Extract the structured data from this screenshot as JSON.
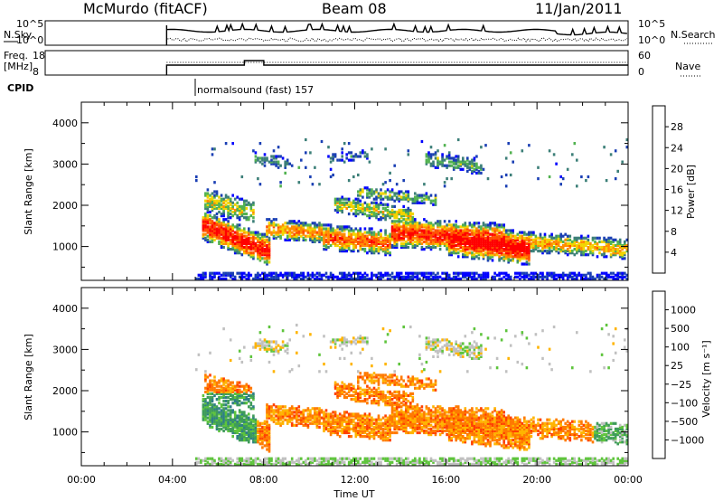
{
  "header": {
    "radar": "McMurdo (fitACF)",
    "beam": "Beam 08",
    "date": "11/Jan/2011"
  },
  "summary_panels": {
    "nsky": {
      "label": "N.Sky",
      "ticks": [
        "10^5",
        "10^0"
      ]
    },
    "nsearch": {
      "label": "N.Search",
      "ticks": [
        "10^5",
        "10^0"
      ]
    },
    "freq": {
      "label_line1": "Freq.",
      "label_line2": "[MHz]",
      "ticks": [
        "18",
        "8"
      ]
    },
    "nave": {
      "label": "Nave",
      "ticks": [
        "60",
        "0"
      ]
    },
    "cpid": {
      "label": "CPID",
      "value": "normalsound (fast) 157"
    }
  },
  "chart_data": [
    {
      "type": "heatmap",
      "title": "",
      "xlabel": "Time UT",
      "ylabel": "Slant Range [km]",
      "x_ticks": [
        "00:00",
        "04:00",
        "08:00",
        "12:00",
        "16:00",
        "20:00",
        "00:00"
      ],
      "xlim_hours": [
        0,
        24
      ],
      "ylim": [
        180,
        4500
      ],
      "y_ticks": [
        1000,
        2000,
        3000,
        4000
      ],
      "data_start_hour": 5.0,
      "colorbar": {
        "label": "Power [dB]",
        "tick_labels": [
          "4",
          "8",
          "12",
          "16",
          "20",
          "24",
          "28"
        ],
        "colors": [
          "#0000ff",
          "#1a3fb4",
          "#3c7f78",
          "#52b250",
          "#f2d400",
          "#ff8c00",
          "#ff5000",
          "#ff0000"
        ]
      }
    },
    {
      "type": "heatmap",
      "title": "",
      "xlabel": "Time UT",
      "ylabel": "Slant Range [km]",
      "x_ticks": [
        "00:00",
        "04:00",
        "08:00",
        "12:00",
        "16:00",
        "20:00",
        "00:00"
      ],
      "xlim_hours": [
        0,
        24
      ],
      "ylim": [
        180,
        4500
      ],
      "y_ticks": [
        1000,
        2000,
        3000,
        4000
      ],
      "data_start_hour": 5.0,
      "colorbar": {
        "label": "Velocity [m s⁻¹]",
        "tick_labels": [
          "1000",
          "500",
          "100",
          "25",
          "−25",
          "−100",
          "−500",
          "−1000"
        ],
        "colors": [
          "#1f3cb4",
          "#2f7f86",
          "#3f9c5a",
          "#5ec43c",
          "#c0c0c0",
          "#ffb400",
          "#ff7a00",
          "#ff4000",
          "#ff0000"
        ]
      }
    }
  ]
}
